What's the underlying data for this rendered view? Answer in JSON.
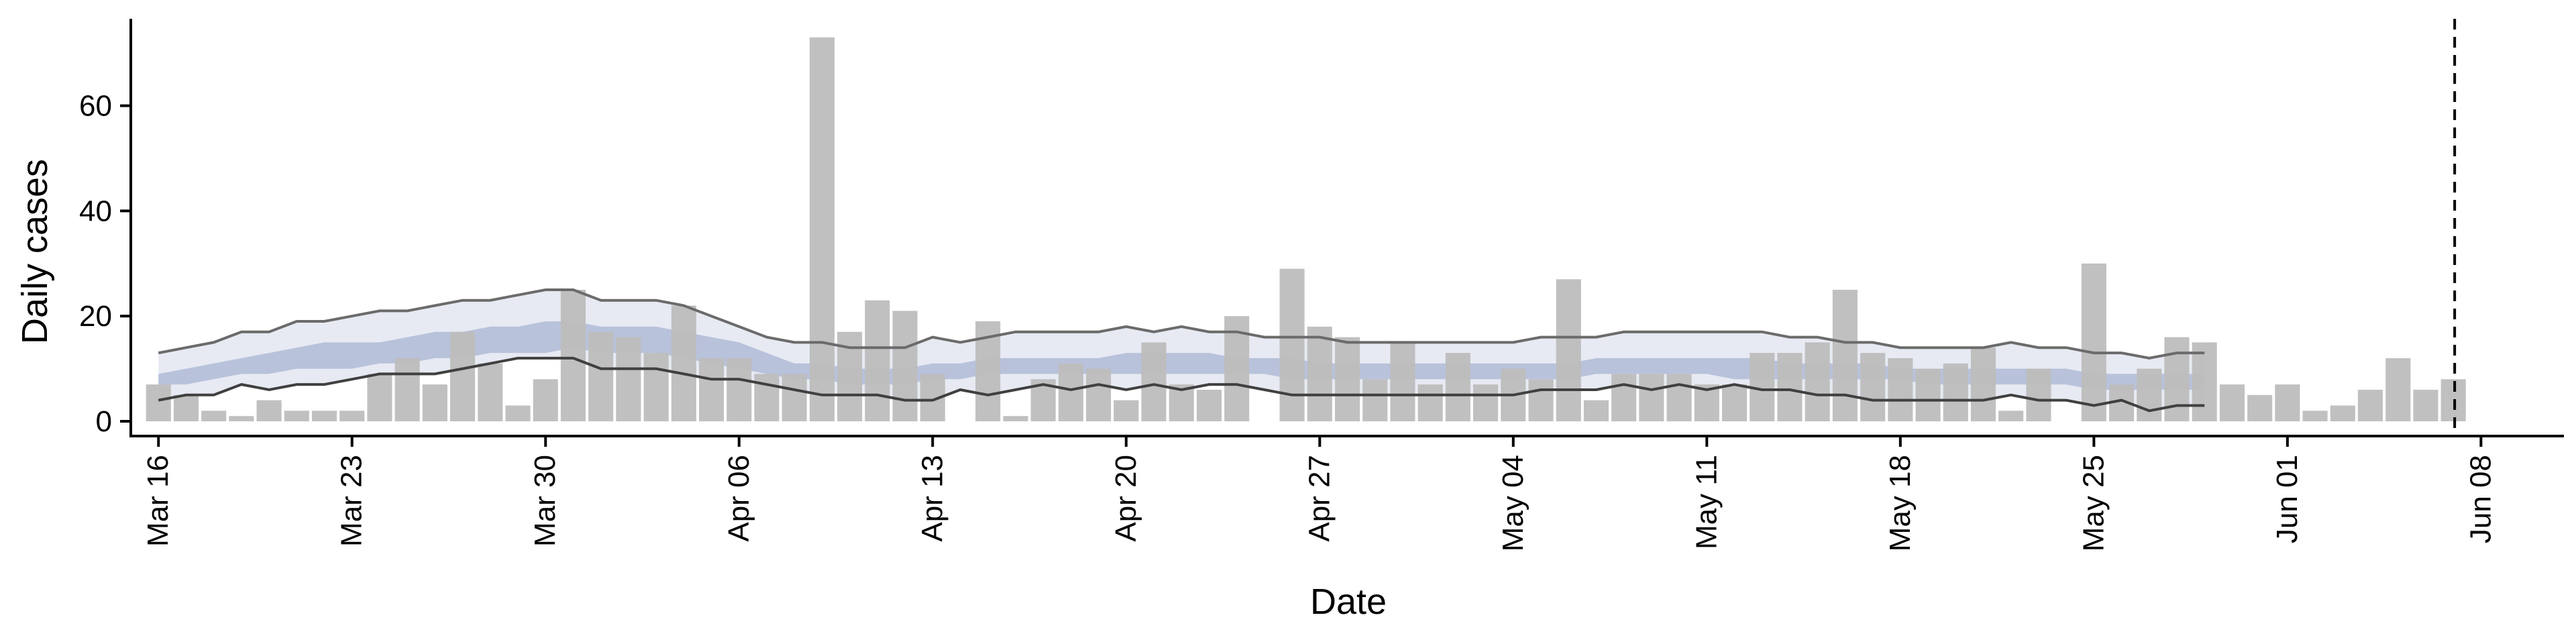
{
  "chart_data": {
    "type": "bar",
    "xlabel": "Date",
    "ylabel": "Daily cases",
    "ylim": [
      0,
      73
    ],
    "y_ticks": [
      0,
      20,
      40,
      60
    ],
    "x_range": [
      "2020-03-15",
      "2020-06-11"
    ],
    "x_ticks": [
      {
        "date": "2020-03-16",
        "label": "Mar 16"
      },
      {
        "date": "2020-03-23",
        "label": "Mar 23"
      },
      {
        "date": "2020-03-30",
        "label": "Mar 30"
      },
      {
        "date": "2020-04-06",
        "label": "Apr 06"
      },
      {
        "date": "2020-04-13",
        "label": "Apr 13"
      },
      {
        "date": "2020-04-20",
        "label": "Apr 20"
      },
      {
        "date": "2020-04-27",
        "label": "Apr 27"
      },
      {
        "date": "2020-05-04",
        "label": "May 04"
      },
      {
        "date": "2020-05-11",
        "label": "May 11"
      },
      {
        "date": "2020-05-18",
        "label": "May 18"
      },
      {
        "date": "2020-05-25",
        "label": "May 25"
      },
      {
        "date": "2020-06-01",
        "label": "Jun 01"
      },
      {
        "date": "2020-06-08",
        "label": "Jun 08"
      }
    ],
    "first_bar_date": "2020-03-16",
    "daily_cases": [
      7,
      5,
      2,
      1,
      4,
      2,
      2,
      2,
      9,
      12,
      7,
      17,
      11,
      3,
      8,
      25,
      17,
      16,
      13,
      22,
      12,
      12,
      9,
      9,
      73,
      17,
      23,
      21,
      9,
      0,
      19,
      1,
      8,
      11,
      10,
      4,
      15,
      7,
      6,
      20,
      0,
      29,
      18,
      16,
      8,
      15,
      7,
      13,
      7,
      10,
      8,
      27,
      4,
      9,
      9,
      9,
      7,
      7,
      13,
      13,
      15,
      25,
      13,
      12,
      10,
      11,
      14,
      2,
      10,
      0,
      30,
      7,
      10,
      16,
      15,
      7,
      5,
      7,
      2,
      3,
      6,
      12,
      6,
      8
    ],
    "colors": {
      "bars": "#bdbdbd",
      "inner_band": "#7f93bf",
      "outer_band": "#dfe3ee",
      "bound_lines": "#6b6b6b"
    },
    "band_first_date": "2020-03-16",
    "bands": {
      "upper_outer": [
        13,
        14,
        15,
        17,
        17,
        19,
        19,
        20,
        21,
        21,
        22,
        23,
        23,
        24,
        25,
        25,
        23,
        23,
        23,
        22,
        20,
        18,
        16,
        15,
        15,
        14,
        14,
        14,
        16,
        15,
        16,
        17,
        17,
        17,
        17,
        18,
        17,
        18,
        17,
        17,
        16,
        16,
        16,
        15,
        15,
        15,
        15,
        15,
        15,
        15,
        16,
        16,
        16,
        17,
        17,
        17,
        17,
        17,
        17,
        16,
        16,
        15,
        15,
        14,
        14,
        14,
        14,
        15,
        14,
        14,
        13,
        13,
        12,
        13,
        13
      ],
      "upper_inner": [
        9,
        10,
        11,
        12,
        13,
        14,
        15,
        15,
        15,
        16,
        17,
        17,
        18,
        18,
        19,
        19,
        18,
        18,
        18,
        17,
        16,
        15,
        13,
        11,
        11,
        10,
        10,
        10,
        11,
        11,
        12,
        12,
        12,
        12,
        12,
        13,
        13,
        13,
        13,
        12,
        12,
        12,
        11,
        11,
        11,
        11,
        11,
        11,
        11,
        11,
        11,
        11,
        12,
        12,
        12,
        12,
        12,
        12,
        12,
        11,
        11,
        11,
        11,
        10,
        10,
        10,
        10,
        10,
        10,
        10,
        9,
        9,
        9,
        9,
        9
      ],
      "lower_inner": [
        7,
        7,
        8,
        9,
        9,
        10,
        10,
        10,
        11,
        11,
        12,
        12,
        13,
        13,
        13,
        14,
        13,
        13,
        13,
        12,
        11,
        10,
        9,
        8,
        8,
        7,
        7,
        7,
        8,
        8,
        9,
        9,
        9,
        9,
        9,
        9,
        9,
        9,
        9,
        9,
        9,
        8,
        8,
        8,
        8,
        8,
        8,
        8,
        8,
        8,
        8,
        8,
        9,
        9,
        9,
        9,
        9,
        8,
        8,
        8,
        8,
        8,
        8,
        8,
        7,
        7,
        7,
        7,
        7,
        7,
        6,
        6,
        6,
        6,
        6
      ],
      "lower_outer": [
        4,
        5,
        5,
        7,
        6,
        7,
        7,
        8,
        9,
        9,
        9,
        10,
        11,
        12,
        12,
        12,
        10,
        10,
        10,
        9,
        8,
        8,
        7,
        6,
        5,
        5,
        5,
        4,
        4,
        6,
        5,
        6,
        7,
        6,
        7,
        6,
        7,
        6,
        7,
        7,
        6,
        5,
        5,
        5,
        5,
        5,
        5,
        5,
        5,
        5,
        6,
        6,
        6,
        7,
        6,
        7,
        6,
        7,
        6,
        6,
        5,
        5,
        4,
        4,
        4,
        4,
        4,
        5,
        4,
        4,
        3,
        4,
        2,
        3,
        3
      ]
    },
    "vline_date": "2020-06-07"
  }
}
